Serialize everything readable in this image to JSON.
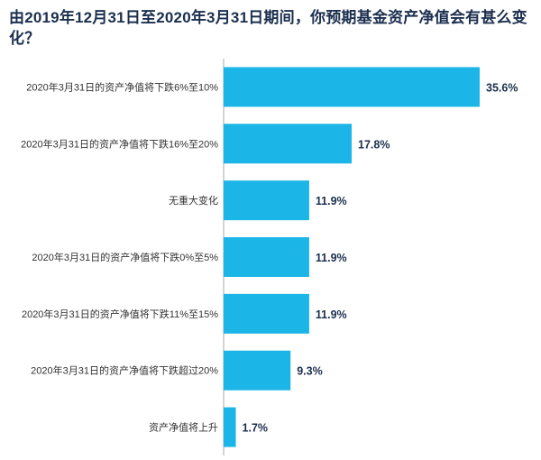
{
  "title": "由2019年12月31日至2020年3月31日期间，你预期基金资产净值会有甚么变化？",
  "chart_data": {
    "type": "bar",
    "orientation": "horizontal",
    "title": "由2019年12月31日至2020年3月31日期间，你预期基金资产净值会有甚么变化？",
    "categories": [
      "2020年3月31日的资产净值将下跌6%至10%",
      "2020年3月31日的资产净值将下跌16%至20%",
      "无重大变化",
      "2020年3月31日的资产净值将下跌0%至5%",
      "2020年3月31日的资产净值将下跌11%至15%",
      "2020年3月31日的资产净值将下跌超过20%",
      "资产净值将上升"
    ],
    "values": [
      35.6,
      17.8,
      11.9,
      11.9,
      11.9,
      9.3,
      1.7
    ],
    "value_labels": [
      "35.6%",
      "17.8%",
      "11.9%",
      "11.9%",
      "11.9%",
      "9.3%",
      "1.7%"
    ],
    "unit": "%",
    "bar_color": "#1cb5e8",
    "axis_color": "#aaaaaa",
    "xlim": [
      0,
      40
    ],
    "grid": false,
    "legend": "none"
  }
}
